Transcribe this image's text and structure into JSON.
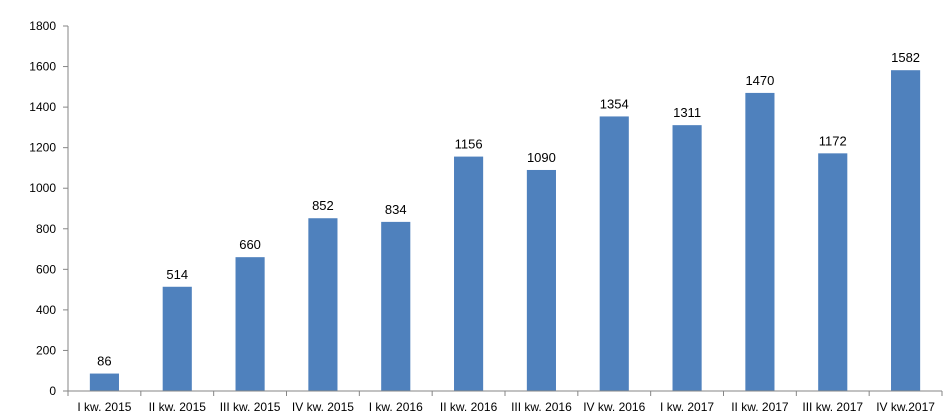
{
  "chart_data": {
    "type": "bar",
    "title": "",
    "xlabel": "",
    "ylabel": "",
    "categories": [
      "I kw. 2015",
      "II kw. 2015",
      "III kw. 2015",
      "IV kw. 2015",
      "I kw. 2016",
      "II kw. 2016",
      "III kw. 2016",
      "IV kw. 2016",
      "I kw. 2017",
      "II kw. 2017",
      "III kw. 2017",
      "IV kw.2017"
    ],
    "values": [
      86,
      514,
      660,
      852,
      834,
      1156,
      1090,
      1354,
      1311,
      1470,
      1172,
      1582
    ],
    "data_labels": [
      "86",
      "514",
      "660",
      "852",
      "834",
      "1156",
      "1090",
      "1354",
      "1311",
      "1470",
      "1172",
      "1582"
    ],
    "ylim": [
      0,
      1800
    ],
    "yticks": [
      0,
      200,
      400,
      600,
      800,
      1000,
      1200,
      1400,
      1600,
      1800
    ],
    "ytick_labels": [
      "0",
      "200",
      "400",
      "600",
      "800",
      "1000",
      "1200",
      "1400",
      "1600",
      "1800"
    ],
    "grid": false,
    "legend": "none",
    "bar_color": "#4F81BD",
    "axis_color": "#868686"
  }
}
